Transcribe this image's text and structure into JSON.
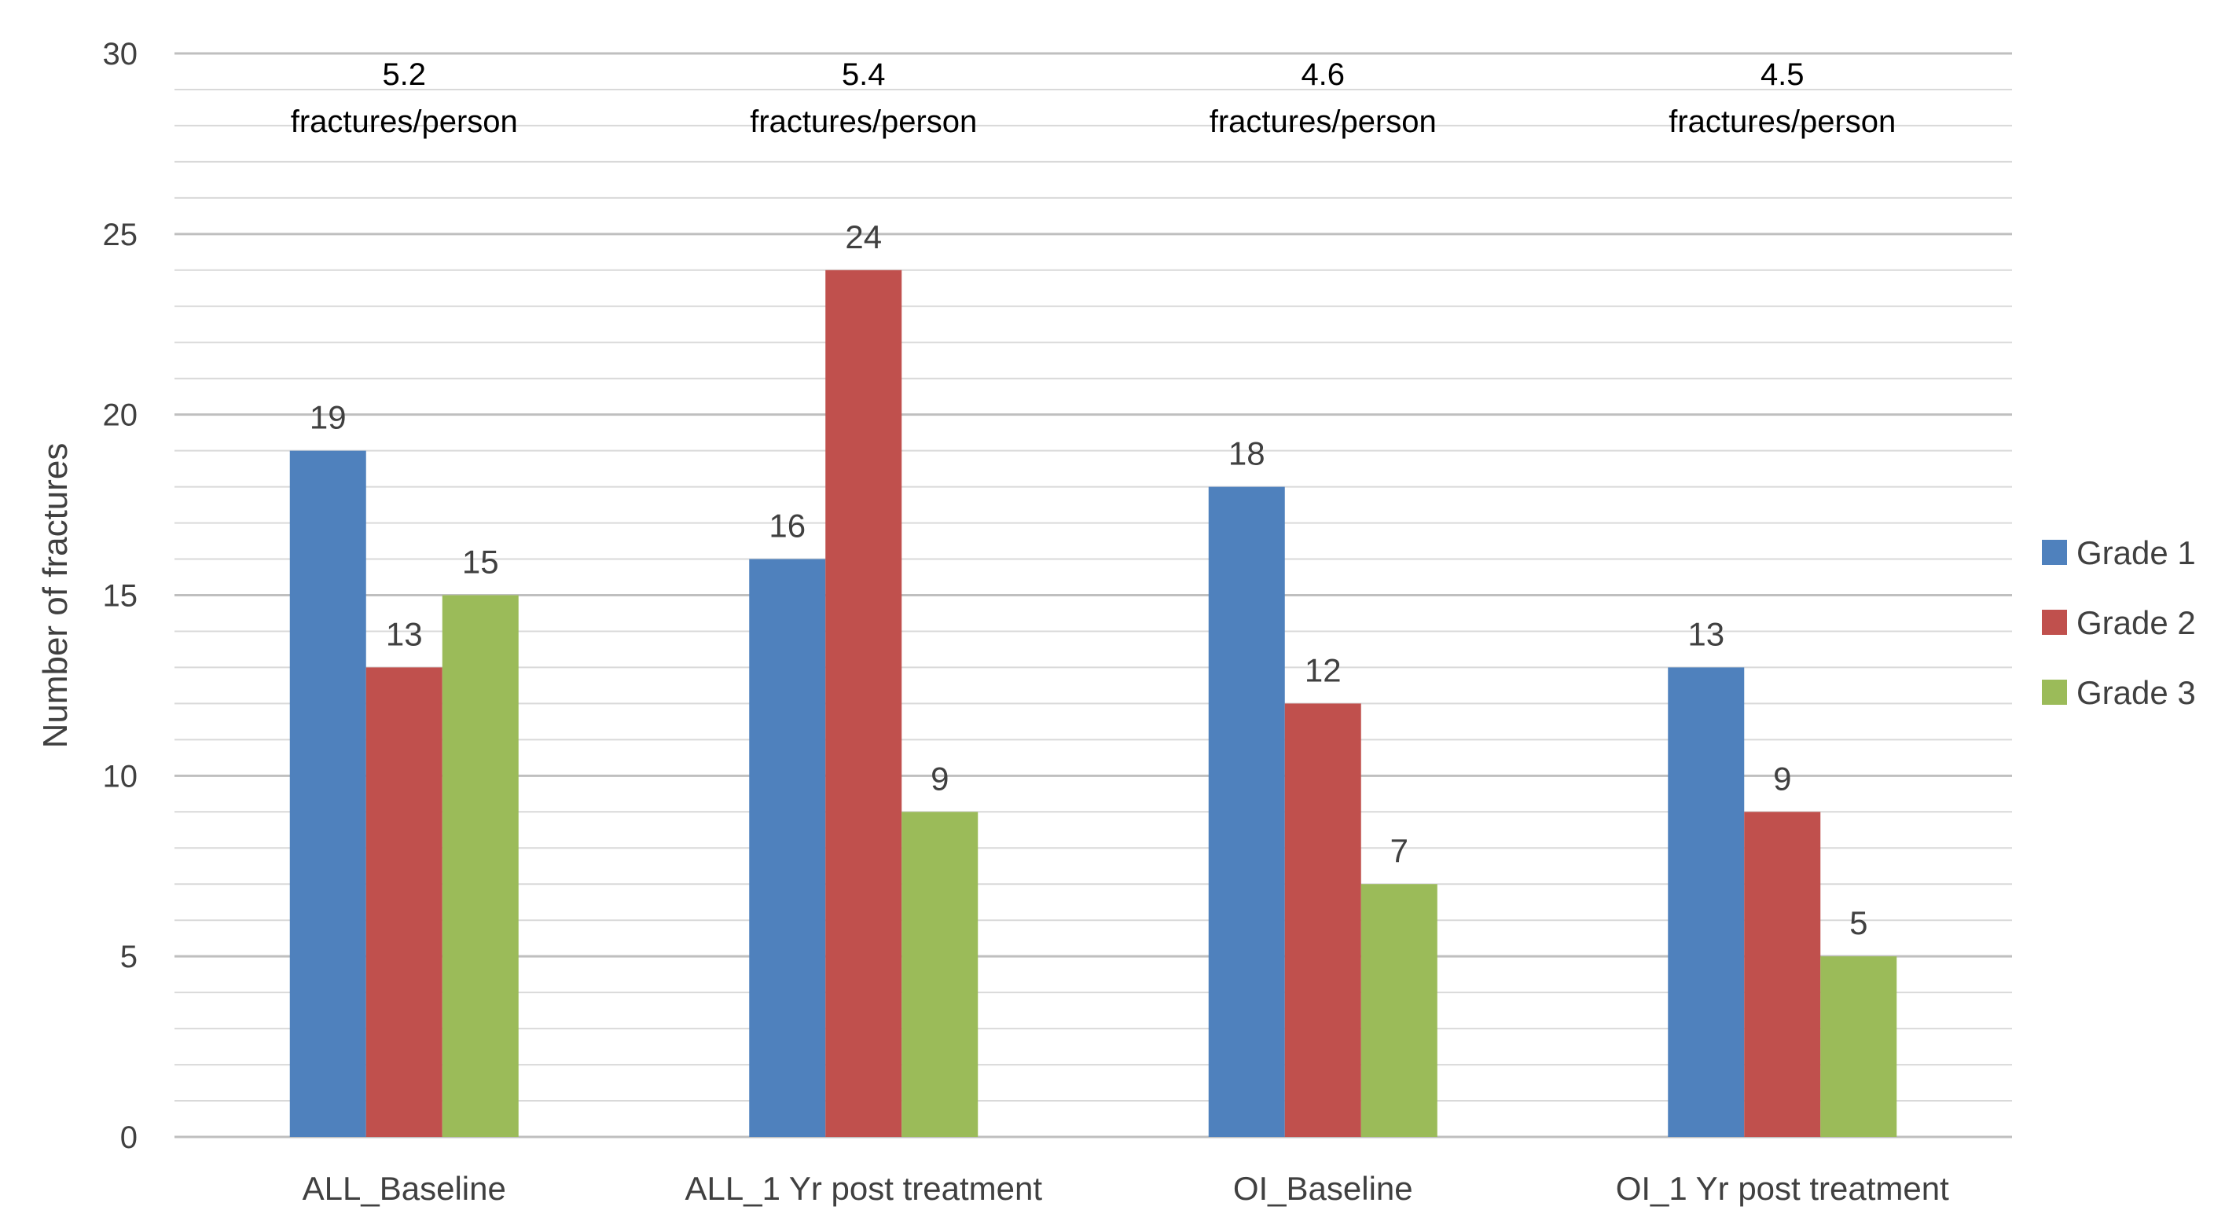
{
  "chart_data": {
    "type": "bar",
    "title": "",
    "xlabel": "",
    "ylabel": "Number of fractures",
    "ylim": [
      0,
      30
    ],
    "yticks": [
      0,
      5,
      10,
      15,
      20,
      25,
      30
    ],
    "grid": true,
    "legend_position": "right",
    "categories": [
      "ALL_Baseline",
      "ALL_1 Yr post treatment",
      "OI_Baseline",
      "OI_1 Yr post treatment"
    ],
    "series": [
      {
        "name": "Grade 1",
        "color": "#4F81BD",
        "values": [
          19,
          16,
          18,
          13
        ]
      },
      {
        "name": "Grade 2",
        "color": "#C0504D",
        "values": [
          13,
          24,
          12,
          9
        ]
      },
      {
        "name": "Grade 3",
        "color": "#9BBB59",
        "values": [
          15,
          9,
          7,
          5
        ]
      }
    ],
    "annotations": [
      {
        "value": "5.2",
        "unit": "fractures/person"
      },
      {
        "value": "5.4",
        "unit": "fractures/person"
      },
      {
        "value": "4.6",
        "unit": "fractures/person"
      },
      {
        "value": "4.5",
        "unit": "fractures/person"
      }
    ]
  }
}
